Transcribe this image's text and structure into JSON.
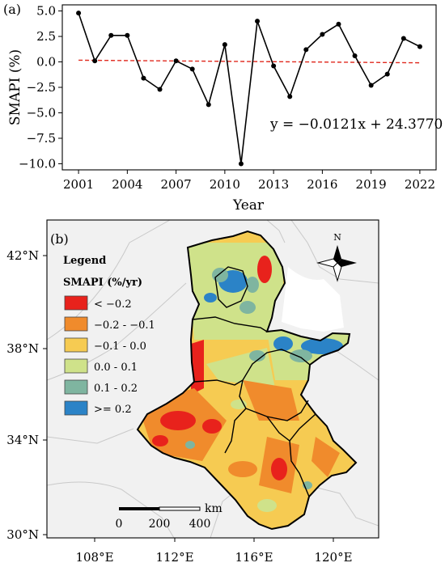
{
  "chart_data": [
    {
      "panel_label": "(a)",
      "type": "line",
      "x": [
        2001,
        2002,
        2003,
        2004,
        2005,
        2006,
        2007,
        2008,
        2009,
        2010,
        2011,
        2012,
        2013,
        2014,
        2015,
        2016,
        2017,
        2018,
        2019,
        2020,
        2021,
        2022
      ],
      "series": [
        {
          "values": [
            4.8,
            0.1,
            2.6,
            2.6,
            -1.6,
            -2.7,
            0.1,
            -0.7,
            -4.2,
            1.7,
            -10.0,
            4.0,
            -0.4,
            -3.4,
            1.2,
            2.7,
            3.7,
            0.6,
            -2.3,
            -1.2,
            2.3,
            1.5
          ],
          "color": "#000000"
        }
      ],
      "trendline": {
        "slope": -0.0121,
        "intercept": 24.377,
        "color": "#e0291e",
        "style": "dashed"
      },
      "equation": "y = −0.0121x + 24.3770",
      "xlabel": "Year",
      "ylabel": "SMAPI (%)",
      "xticks": [
        "2001",
        "2004",
        "2007",
        "2010",
        "2013",
        "2016",
        "2019",
        "2022"
      ],
      "yticks": [
        "5.0",
        "2.5",
        "0.0",
        "−2.5",
        "−5.0",
        "−7.5",
        "−10.0"
      ],
      "xlim": [
        2000,
        2023
      ],
      "ylim": [
        -10.6,
        5.6
      ]
    },
    {
      "panel_label": "(b)",
      "type": "heatmap",
      "legend_title": "Legend",
      "legend_subtitle": "SMAPI (%/yr)",
      "classes": [
        {
          "label": "< −0.2",
          "color": "#e8221c"
        },
        {
          "label": "−0.2 - −0.1",
          "color": "#f08b2c"
        },
        {
          "label": "−0.1 - 0.0",
          "color": "#f6cb52"
        },
        {
          "label": "0.0 - 0.1",
          "color": "#cfe28a"
        },
        {
          "label": "0.1 - 0.2",
          "color": "#7fb5a0"
        },
        {
          "label": ">= 0.2",
          "color": "#2b83c7"
        }
      ],
      "lat_ticks": [
        "42°N",
        "38°N",
        "34°N",
        "30°N"
      ],
      "lon_ticks": [
        "108°E",
        "112°E",
        "116°E",
        "120°E"
      ],
      "scale_bar": {
        "labels": [
          "0",
          "200",
          "400"
        ],
        "unit": "km"
      },
      "north_label": "N"
    }
  ]
}
